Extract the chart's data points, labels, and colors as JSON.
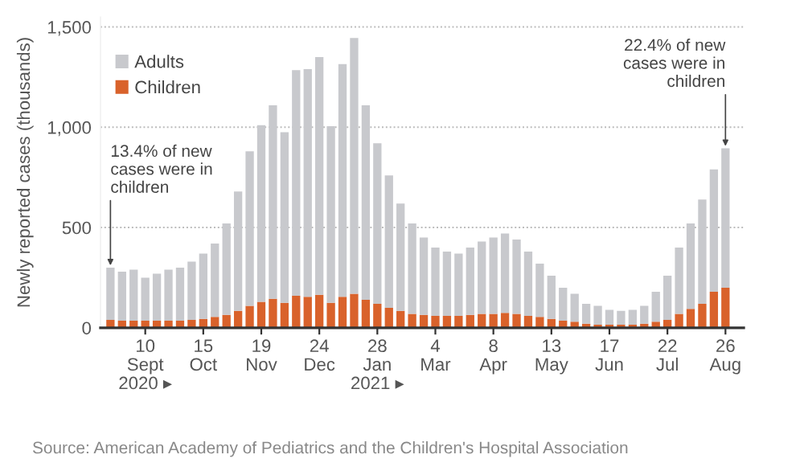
{
  "chart_data": {
    "type": "bar",
    "stacked": true,
    "ylabel": "Newly reported cases (thousands)",
    "x": [
      "2020-08-20",
      "2020-08-27",
      "2020-09-03",
      "2020-09-10",
      "2020-09-17",
      "2020-09-24",
      "2020-10-01",
      "2020-10-08",
      "2020-10-15",
      "2020-10-22",
      "2020-10-29",
      "2020-11-05",
      "2020-11-12",
      "2020-11-19",
      "2020-11-26",
      "2020-12-03",
      "2020-12-10",
      "2020-12-17",
      "2020-12-24",
      "2020-12-31",
      "2021-01-07",
      "2021-01-14",
      "2021-01-21",
      "2021-01-28",
      "2021-02-04",
      "2021-02-11",
      "2021-02-18",
      "2021-02-25",
      "2021-03-04",
      "2021-03-11",
      "2021-03-18",
      "2021-03-25",
      "2021-04-01",
      "2021-04-08",
      "2021-04-15",
      "2021-04-22",
      "2021-04-29",
      "2021-05-06",
      "2021-05-13",
      "2021-05-20",
      "2021-05-27",
      "2021-06-03",
      "2021-06-10",
      "2021-06-17",
      "2021-06-24",
      "2021-07-01",
      "2021-07-08",
      "2021-07-15",
      "2021-07-22",
      "2021-07-29",
      "2021-08-05",
      "2021-08-12",
      "2021-08-19",
      "2021-08-26"
    ],
    "series": [
      {
        "name": "Children",
        "color": "#d9622b",
        "values": [
          40,
          35,
          35,
          35,
          35,
          35,
          35,
          40,
          45,
          55,
          65,
          85,
          110,
          130,
          145,
          125,
          160,
          155,
          165,
          125,
          155,
          170,
          140,
          120,
          100,
          85,
          70,
          65,
          60,
          60,
          60,
          65,
          70,
          70,
          75,
          70,
          60,
          55,
          45,
          35,
          30,
          20,
          15,
          15,
          15,
          15,
          20,
          30,
          40,
          70,
          95,
          120,
          180,
          200
        ]
      },
      {
        "name": "Adults",
        "color": "#c8c9cd",
        "values": [
          260,
          245,
          255,
          215,
          235,
          255,
          265,
          290,
          325,
          365,
          455,
          595,
          770,
          880,
          965,
          850,
          1125,
          1135,
          1185,
          880,
          1160,
          1275,
          970,
          800,
          660,
          535,
          450,
          385,
          340,
          320,
          310,
          335,
          360,
          380,
          395,
          370,
          320,
          265,
          215,
          165,
          140,
          100,
          95,
          75,
          70,
          75,
          90,
          150,
          220,
          330,
          425,
          520,
          610,
          695
        ]
      }
    ],
    "xlim": [
      "2020-08-14",
      "2021-09-06"
    ],
    "xticks": [
      {
        "value": "2020-09-10",
        "label": "10\nSept\n2020 ▸"
      },
      {
        "value": "2020-10-15",
        "label": "15\nOct"
      },
      {
        "value": "2020-11-19",
        "label": "19\nNov"
      },
      {
        "value": "2020-12-24",
        "label": "24\nDec"
      },
      {
        "value": "2021-01-28",
        "label": "28\nJan\n2021 ▸"
      },
      {
        "value": "2021-03-04",
        "label": "4\nMar"
      },
      {
        "value": "2021-04-08",
        "label": "8\nApr"
      },
      {
        "value": "2021-05-13",
        "label": "13\nMay"
      },
      {
        "value": "2021-06-17",
        "label": "17\nJun"
      },
      {
        "value": "2021-07-22",
        "label": "22\nJul"
      },
      {
        "value": "2021-08-26",
        "label": "26\nAug"
      }
    ],
    "ylim": [
      0,
      1550
    ],
    "yticks": [
      0,
      500,
      {
        "value": 1000,
        "label": "1,000"
      },
      {
        "value": 1500,
        "label": "1,500"
      }
    ],
    "grid": "y",
    "legend": "top left",
    "annotations": [
      {
        "text": "13.4% of new\ncases were in\nchildren",
        "x": "2020-08-20",
        "y": 300
      },
      {
        "text": "22.4% of new\ncases were in\nchildren",
        "x": "2021-08-26",
        "y": 895
      },
      "Source: American Academy of Pediatrics and the Children's Hospital Association"
    ]
  }
}
